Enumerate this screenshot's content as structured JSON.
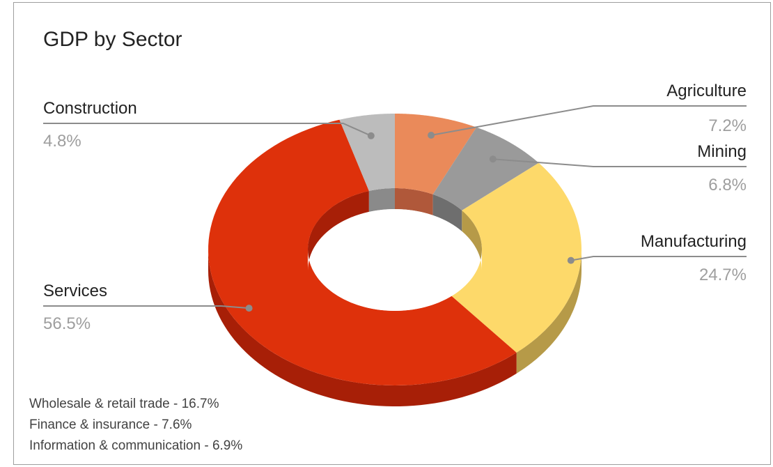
{
  "chart_data": {
    "type": "pie",
    "style": "3d-donut",
    "title": "GDP by Sector",
    "categories": [
      "Agriculture",
      "Mining",
      "Manufacturing",
      "Services",
      "Construction"
    ],
    "values": [
      7.2,
      6.8,
      24.7,
      56.5,
      4.8
    ],
    "labels": [
      "7.2%",
      "6.8%",
      "24.7%",
      "56.5%",
      "4.8%"
    ],
    "colors": [
      "#ea8a5a",
      "#9a9a9a",
      "#fdd96a",
      "#de310b",
      "#bcbcbc"
    ],
    "side_colors": [
      "#b0583a",
      "#6e6e6e",
      "#b69a48",
      "#a71f07",
      "#8a8a8a"
    ],
    "annotations": [
      "Wholesale & retail trade - 16.7%",
      "Finance & insurance - 7.6%",
      "Information & communication - 6.9%"
    ],
    "legend": "none"
  }
}
